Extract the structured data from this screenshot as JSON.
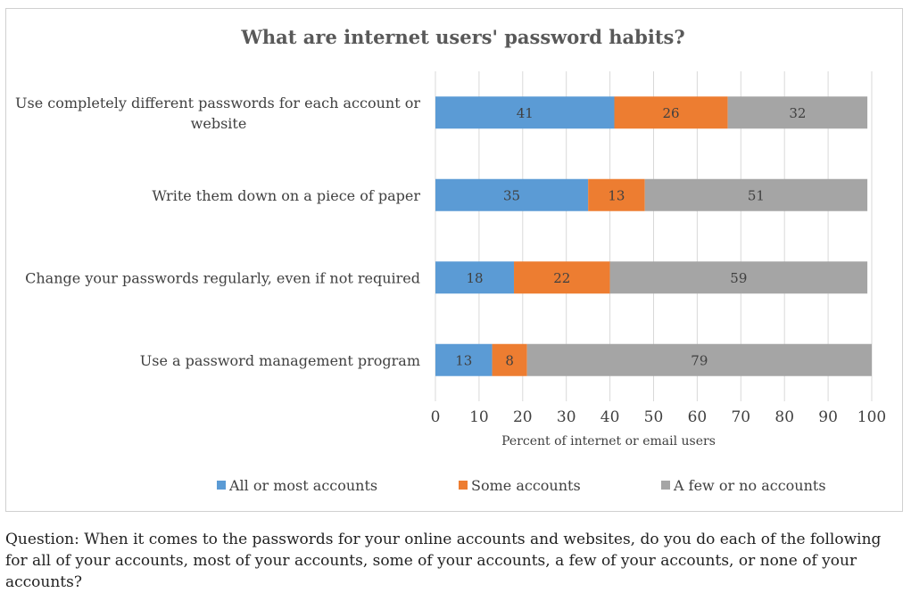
{
  "chart_data": {
    "type": "bar",
    "orientation": "horizontal",
    "stacked": true,
    "title": "What are internet users' password habits?",
    "xlabel": "Percent of internet or email users",
    "xlim": [
      0,
      100
    ],
    "x_ticks": [
      0,
      10,
      20,
      30,
      40,
      50,
      60,
      70,
      80,
      90,
      100
    ],
    "grid": "vertical",
    "legend_position": "bottom",
    "categories": [
      [
        "Use completely different passwords for each account or",
        "website"
      ],
      [
        "Write them down on a piece of paper"
      ],
      [
        "Change your passwords regularly, even if not required"
      ],
      [
        "Use a password management program"
      ]
    ],
    "series": [
      {
        "name": "All or most accounts",
        "color": "#5b9bd5",
        "values": [
          41,
          35,
          18,
          13
        ]
      },
      {
        "name": "Some accounts",
        "color": "#ed7d31",
        "values": [
          26,
          13,
          22,
          8
        ]
      },
      {
        "name": "A few or no accounts",
        "color": "#a5a5a5",
        "values": [
          32,
          51,
          59,
          79
        ]
      }
    ]
  },
  "question": "Question: When it comes to the passwords for your online accounts and websites, do you do each of the following for all of your accounts, most of your accounts, some of your accounts, a few of your accounts, or none of your accounts?"
}
